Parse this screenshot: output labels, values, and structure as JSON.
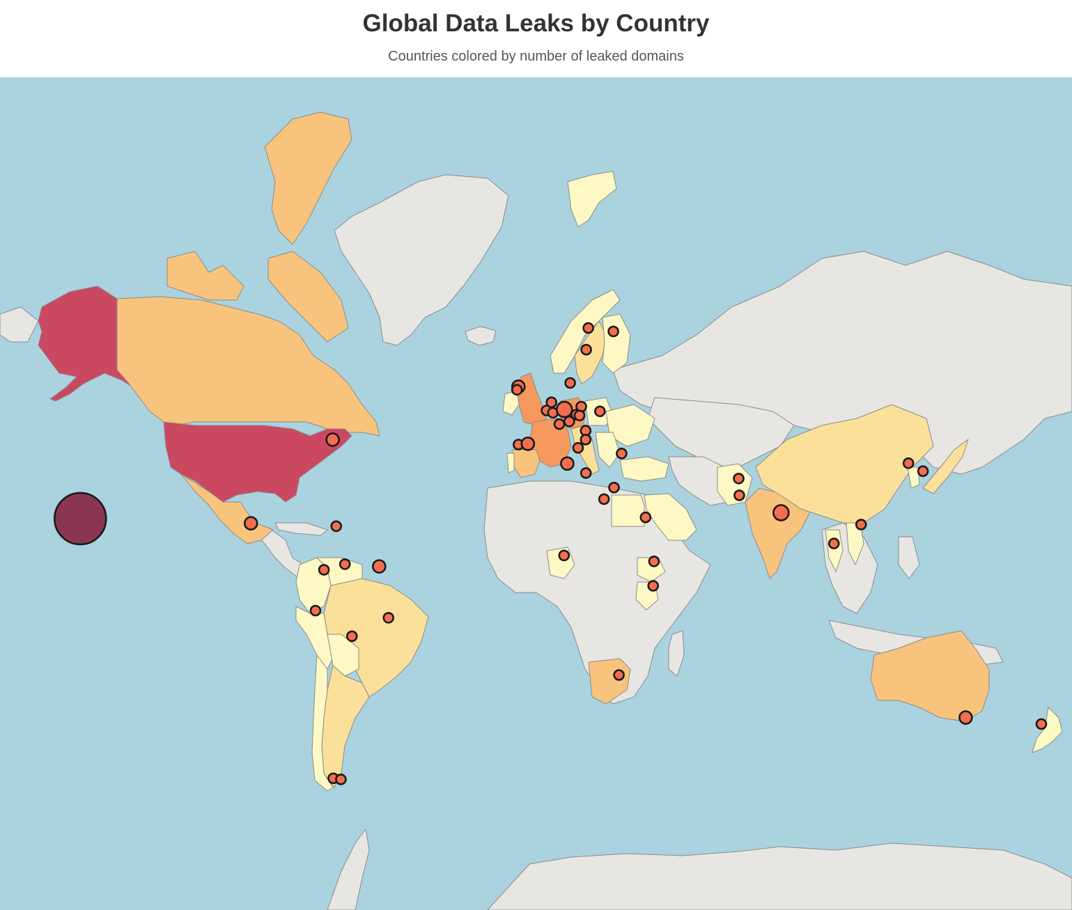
{
  "header": {
    "title": "Global Data Leaks by Country",
    "subtitle": "Countries colored by number of leaked domains"
  },
  "colors": {
    "ocean": "#aad3df",
    "no_data_land": "#e8e6e3",
    "tier_1": "#fdf8c4",
    "tier_2": "#fbe09a",
    "tier_3": "#f8c37c",
    "tier_4": "#f59a5c",
    "tier_5": "#cc4159",
    "marker_fill": "#f26e4e",
    "marker_large_fill": "#8a3653"
  },
  "countries": [
    {
      "name": "Alaska (United States)",
      "tier": "tier_5"
    },
    {
      "name": "United States",
      "tier": "tier_5"
    },
    {
      "name": "Canada",
      "tier": "tier_3"
    },
    {
      "name": "Mexico",
      "tier": "tier_3"
    },
    {
      "name": "Colombia",
      "tier": "tier_1"
    },
    {
      "name": "Venezuela",
      "tier": "tier_1"
    },
    {
      "name": "Brazil",
      "tier": "tier_2"
    },
    {
      "name": "Peru",
      "tier": "tier_1"
    },
    {
      "name": "Bolivia",
      "tier": "tier_1"
    },
    {
      "name": "Argentina",
      "tier": "tier_2"
    },
    {
      "name": "Chile",
      "tier": "tier_1"
    },
    {
      "name": "United Kingdom",
      "tier": "tier_4"
    },
    {
      "name": "Ireland",
      "tier": "tier_1"
    },
    {
      "name": "France",
      "tier": "tier_4"
    },
    {
      "name": "Germany",
      "tier": "tier_4"
    },
    {
      "name": "Spain",
      "tier": "tier_3"
    },
    {
      "name": "Portugal",
      "tier": "tier_1"
    },
    {
      "name": "Italy",
      "tier": "tier_2"
    },
    {
      "name": "Norway",
      "tier": "tier_1"
    },
    {
      "name": "Sweden",
      "tier": "tier_2"
    },
    {
      "name": "Finland",
      "tier": "tier_1"
    },
    {
      "name": "Svalbard",
      "tier": "tier_1"
    },
    {
      "name": "Poland",
      "tier": "tier_1"
    },
    {
      "name": "Ukraine",
      "tier": "tier_1"
    },
    {
      "name": "Turkey",
      "tier": "tier_1"
    },
    {
      "name": "Egypt",
      "tier": "tier_1"
    },
    {
      "name": "Saudi Arabia",
      "tier": "tier_1"
    },
    {
      "name": "Nigeria",
      "tier": "tier_1"
    },
    {
      "name": "Ethiopia",
      "tier": "tier_1"
    },
    {
      "name": "Kenya",
      "tier": "tier_1"
    },
    {
      "name": "South Africa",
      "tier": "tier_3"
    },
    {
      "name": "Pakistan",
      "tier": "tier_1"
    },
    {
      "name": "India",
      "tier": "tier_3"
    },
    {
      "name": "China",
      "tier": "tier_2"
    },
    {
      "name": "Japan",
      "tier": "tier_2"
    },
    {
      "name": "South Korea",
      "tier": "tier_1"
    },
    {
      "name": "Thailand",
      "tier": "tier_1"
    },
    {
      "name": "Vietnam",
      "tier": "tier_1"
    },
    {
      "name": "Australia",
      "tier": "tier_3"
    },
    {
      "name": "New Zealand",
      "tier": "tier_1"
    }
  ],
  "markers": [
    {
      "location": "Hawaii",
      "lon": -157.5,
      "lat": 20.8,
      "size": "xl"
    },
    {
      "location": "Boston",
      "lon": -71.1,
      "lat": 42.4,
      "size": "m"
    },
    {
      "location": "Mexico City",
      "lon": -99.1,
      "lat": 19.4,
      "size": "m"
    },
    {
      "location": "Santo Domingo",
      "lon": -69.9,
      "lat": 18.5,
      "size": "s"
    },
    {
      "location": "Bogota",
      "lon": -74.1,
      "lat": 4.7,
      "size": "s"
    },
    {
      "location": "Caracas",
      "lon": -66.9,
      "lat": 6.5,
      "size": "s"
    },
    {
      "location": "Paramaribo",
      "lon": -55.2,
      "lat": 5.8,
      "size": "m"
    },
    {
      "location": "Lima",
      "lon": -77.0,
      "lat": -8.5,
      "size": "s"
    },
    {
      "location": "Brazil",
      "lon": -52.0,
      "lat": -10.8,
      "size": "s"
    },
    {
      "location": "Bolivia",
      "lon": -64.5,
      "lat": -16.6,
      "size": "s"
    },
    {
      "location": "Punta Arenas",
      "lon": -70.9,
      "lat": -53.1,
      "size": "s"
    },
    {
      "location": "Ushuaia",
      "lon": -68.3,
      "lat": -53.3,
      "size": "s"
    },
    {
      "location": "Dublin",
      "lon": -7.5,
      "lat": 53.8,
      "size": "m"
    },
    {
      "location": "Belfast",
      "lon": -8.0,
      "lat": 53.2,
      "size": "s"
    },
    {
      "location": "Lisbon",
      "lon": -7.5,
      "lat": 41.2,
      "size": "s"
    },
    {
      "location": "Madrid",
      "lon": -4.3,
      "lat": 41.4,
      "size": "m"
    },
    {
      "location": "Paris",
      "lon": 2.1,
      "lat": 49.0,
      "size": "s"
    },
    {
      "location": "Brussels",
      "lon": 3.8,
      "lat": 50.7,
      "size": "s"
    },
    {
      "location": "Luxembourg",
      "lon": 4.3,
      "lat": 48.5,
      "size": "s"
    },
    {
      "location": "Frankfurt",
      "lon": 8.2,
      "lat": 49.2,
      "size": "l"
    },
    {
      "location": "Copenhagen",
      "lon": 10.2,
      "lat": 54.5,
      "size": "s"
    },
    {
      "location": "Zurich",
      "lon": 6.5,
      "lat": 46.0,
      "size": "s"
    },
    {
      "location": "Milan",
      "lon": 9.9,
      "lat": 46.6,
      "size": "s"
    },
    {
      "location": "Vienna",
      "lon": 12.3,
      "lat": 48.1,
      "size": "s"
    },
    {
      "location": "Prague",
      "lon": 14.0,
      "lat": 49.8,
      "size": "s"
    },
    {
      "location": "Budapest",
      "lon": 13.4,
      "lat": 47.9,
      "size": "s"
    },
    {
      "location": "Kyiv",
      "lon": 20.4,
      "lat": 48.8,
      "size": "s"
    },
    {
      "location": "Belgrade",
      "lon": 15.5,
      "lat": 44.5,
      "size": "s"
    },
    {
      "location": "Sofia",
      "lon": 15.5,
      "lat": 42.4,
      "size": "s"
    },
    {
      "location": "Rome",
      "lon": 12.9,
      "lat": 40.4,
      "size": "s"
    },
    {
      "location": "Sicily",
      "lon": 9.2,
      "lat": 36.4,
      "size": "m"
    },
    {
      "location": "Athens",
      "lon": 15.6,
      "lat": 33.9,
      "size": "s"
    },
    {
      "location": "Istanbul",
      "lon": 27.8,
      "lat": 39.0,
      "size": "s"
    },
    {
      "location": "Cairo",
      "lon": 25.2,
      "lat": 29.9,
      "size": "s"
    },
    {
      "location": "Jerusalem",
      "lon": 21.8,
      "lat": 26.6,
      "size": "s"
    },
    {
      "location": "Riyadh",
      "lon": 36.0,
      "lat": 21.2,
      "size": "s"
    },
    {
      "location": "Oslo",
      "lon": 16.4,
      "lat": 63.6,
      "size": "s"
    },
    {
      "location": "Stockholm",
      "lon": 15.7,
      "lat": 60.3,
      "size": "s"
    },
    {
      "location": "Helsinki",
      "lon": 25.0,
      "lat": 63.1,
      "size": "s"
    },
    {
      "location": "Lagos",
      "lon": 8.1,
      "lat": 9.3,
      "size": "s"
    },
    {
      "location": "Addis Ababa",
      "lon": 38.9,
      "lat": 7.4,
      "size": "s"
    },
    {
      "location": "Nairobi",
      "lon": 38.6,
      "lat": -0.5,
      "size": "s"
    },
    {
      "location": "Johannesburg",
      "lon": 26.9,
      "lat": -28.2,
      "size": "s"
    },
    {
      "location": "Islamabad",
      "lon": 67.9,
      "lat": 32.4,
      "size": "s"
    },
    {
      "location": "Karachi",
      "lon": 68.1,
      "lat": 27.7,
      "size": "s"
    },
    {
      "location": "Delhi",
      "lon": 82.4,
      "lat": 22.6,
      "size": "l"
    },
    {
      "location": "Bangkok",
      "lon": 100.5,
      "lat": 13.1,
      "size": "s"
    },
    {
      "location": "Hanoi",
      "lon": 109.8,
      "lat": 19.0,
      "size": "s"
    },
    {
      "location": "Seoul",
      "lon": 126.0,
      "lat": 36.5,
      "size": "s"
    },
    {
      "location": "Tokyo",
      "lon": 131.0,
      "lat": 34.4,
      "size": "s"
    },
    {
      "location": "Melbourne",
      "lon": 145.6,
      "lat": -39.6,
      "size": "m"
    },
    {
      "location": "Wellington",
      "lon": 171.5,
      "lat": -41.2,
      "size": "s"
    }
  ]
}
